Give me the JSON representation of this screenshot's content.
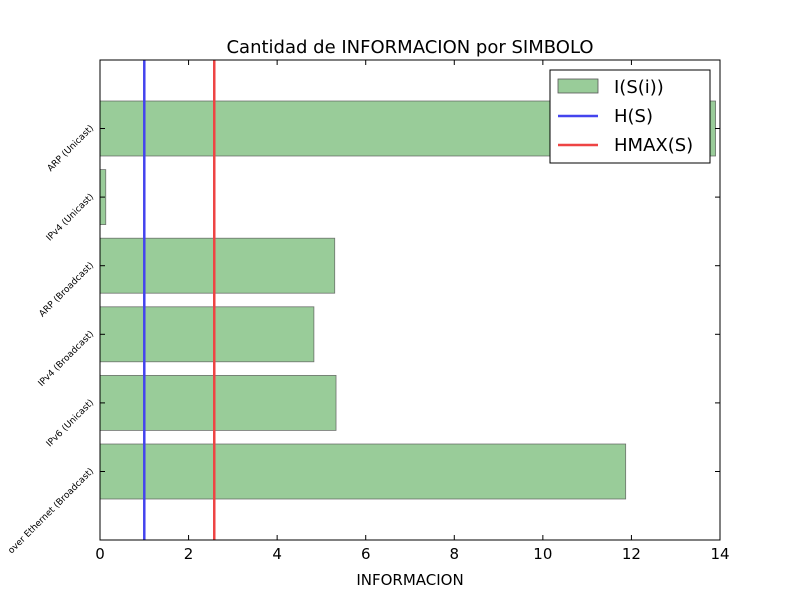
{
  "chart_data": {
    "type": "bar",
    "orientation": "horizontal",
    "title": "Cantidad de INFORMACION por SIMBOLO",
    "xlabel": "INFORMACION",
    "ylabel": "",
    "xlim": [
      0,
      14
    ],
    "xticks": [
      "0",
      "2",
      "4",
      "6",
      "8",
      "10",
      "12",
      "14"
    ],
    "categories": [
      "ARP (Unicast)",
      "IPv4 (Unicast)",
      "ARP (Broadcast)",
      "IPv4 (Broadcast)",
      "IPv6 (Unicast)",
      "over Ethernet (Broadcast)"
    ],
    "series": [
      {
        "name": "I(S(i))",
        "values": [
          13.9,
          0.13,
          5.3,
          4.83,
          5.33,
          11.87
        ],
        "color": "#99cc99"
      }
    ],
    "reference_lines": [
      {
        "name": "H(S)",
        "value": 1.0,
        "color": "#4444ee"
      },
      {
        "name": "HMAX(S)",
        "value": 2.58,
        "color": "#ee4444"
      }
    ],
    "legend_position": "top-right",
    "grid": false
  }
}
